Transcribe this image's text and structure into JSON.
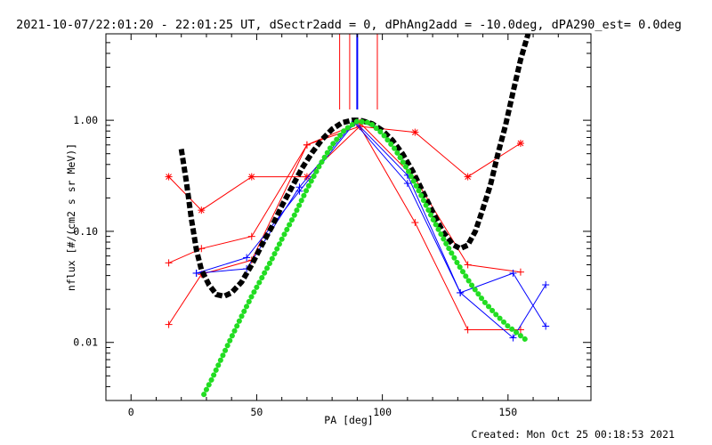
{
  "title": "2021-10-07/22:01:20 - 22:01:25 UT, dSectr2add = 0, dPhAng2add = -10.0deg, dPA290_est=  0.0deg",
  "footer": "Created: Mon Oct 25 00:18:53 2021",
  "chart_data": {
    "type": "scatter",
    "xlabel": "PA [deg]",
    "ylabel": "nflux [#/(cm2 s sr MeV)]",
    "xlim": [
      -10,
      183
    ],
    "ylim": [
      0.003,
      6.0
    ],
    "yscale": "log",
    "x_ticks": [
      0,
      50,
      100,
      150
    ],
    "x_tick_labels": [
      "0",
      "50",
      "100",
      "150"
    ],
    "y_ticks": [
      0.01,
      0.1,
      1.0
    ],
    "y_tick_labels": [
      "0.01",
      "0.10",
      "1.00"
    ],
    "colors": {
      "red": "#ff0000",
      "blue": "#0000ff",
      "black": "#000000",
      "green": "#22dd22"
    },
    "vertical_markers": [
      {
        "x": 83,
        "color": "#ff0000"
      },
      {
        "x": 87,
        "color": "#ff0000"
      },
      {
        "x": 90,
        "color": "#0000ff"
      },
      {
        "x": 98,
        "color": "#ff0000"
      }
    ],
    "series": [
      {
        "color": "#ff0000",
        "marker": "asterisk",
        "x": [
          15,
          28,
          48,
          70,
          91,
          113,
          134,
          155
        ],
        "y": [
          0.31,
          0.155,
          0.31,
          0.31,
          0.88,
          0.78,
          0.31,
          0.62
        ]
      },
      {
        "color": "#ff0000",
        "marker": "plus",
        "x": [
          15,
          28,
          48,
          70,
          91,
          113,
          134,
          155
        ],
        "y": [
          0.052,
          0.07,
          0.09,
          0.6,
          0.88,
          0.12,
          0.013,
          0.013
        ]
      },
      {
        "color": "#ff0000",
        "marker": "plus",
        "x": [
          15,
          28,
          48,
          70,
          91,
          113,
          134,
          155
        ],
        "y": [
          0.0145,
          0.041,
          0.055,
          0.6,
          0.95,
          0.3,
          0.05,
          0.043
        ]
      },
      {
        "color": "#0000ff",
        "marker": "plus",
        "x": [
          26,
          46,
          67,
          89,
          110,
          131,
          152,
          165
        ],
        "y": [
          0.042,
          0.058,
          0.23,
          0.95,
          0.27,
          0.028,
          0.011,
          0.033
        ]
      },
      {
        "color": "#0000ff",
        "marker": "plus",
        "x": [
          26,
          46,
          67,
          89,
          110,
          131,
          152,
          165
        ],
        "y": [
          0.042,
          0.046,
          0.25,
          0.98,
          0.32,
          0.028,
          0.042,
          0.014
        ]
      },
      {
        "color": "#000000",
        "marker": "thick-dashed",
        "x": [
          20,
          22,
          24,
          26,
          28,
          31,
          34,
          37,
          40,
          44,
          48,
          52,
          56,
          60,
          64,
          68,
          72,
          76,
          80,
          84,
          88,
          90,
          92,
          96,
          100,
          104,
          108,
          112,
          116,
          120,
          124,
          128,
          131,
          134,
          137,
          140,
          143,
          146,
          149,
          152,
          155,
          158
        ],
        "y": [
          0.55,
          0.28,
          0.13,
          0.068,
          0.045,
          0.033,
          0.027,
          0.026,
          0.028,
          0.035,
          0.05,
          0.075,
          0.11,
          0.17,
          0.25,
          0.37,
          0.51,
          0.67,
          0.83,
          0.95,
          1.0,
          1.0,
          0.99,
          0.93,
          0.81,
          0.66,
          0.5,
          0.35,
          0.23,
          0.15,
          0.1,
          0.076,
          0.07,
          0.075,
          0.1,
          0.16,
          0.26,
          0.5,
          0.9,
          1.8,
          3.5,
          6.0
        ]
      },
      {
        "color": "#22dd22",
        "marker": "thick-dotted",
        "x": [
          29,
          32,
          36,
          40,
          44,
          48,
          52,
          56,
          60,
          65,
          70,
          75,
          80,
          85,
          90,
          95,
          100,
          105,
          110,
          115,
          120,
          125,
          130,
          135,
          140,
          145,
          150,
          155,
          158
        ],
        "y": [
          0.0034,
          0.0046,
          0.0072,
          0.0112,
          0.0172,
          0.026,
          0.038,
          0.056,
          0.085,
          0.14,
          0.24,
          0.39,
          0.6,
          0.82,
          0.98,
          0.95,
          0.76,
          0.55,
          0.36,
          0.22,
          0.13,
          0.08,
          0.051,
          0.034,
          0.024,
          0.018,
          0.014,
          0.0115,
          0.0102
        ]
      }
    ]
  }
}
